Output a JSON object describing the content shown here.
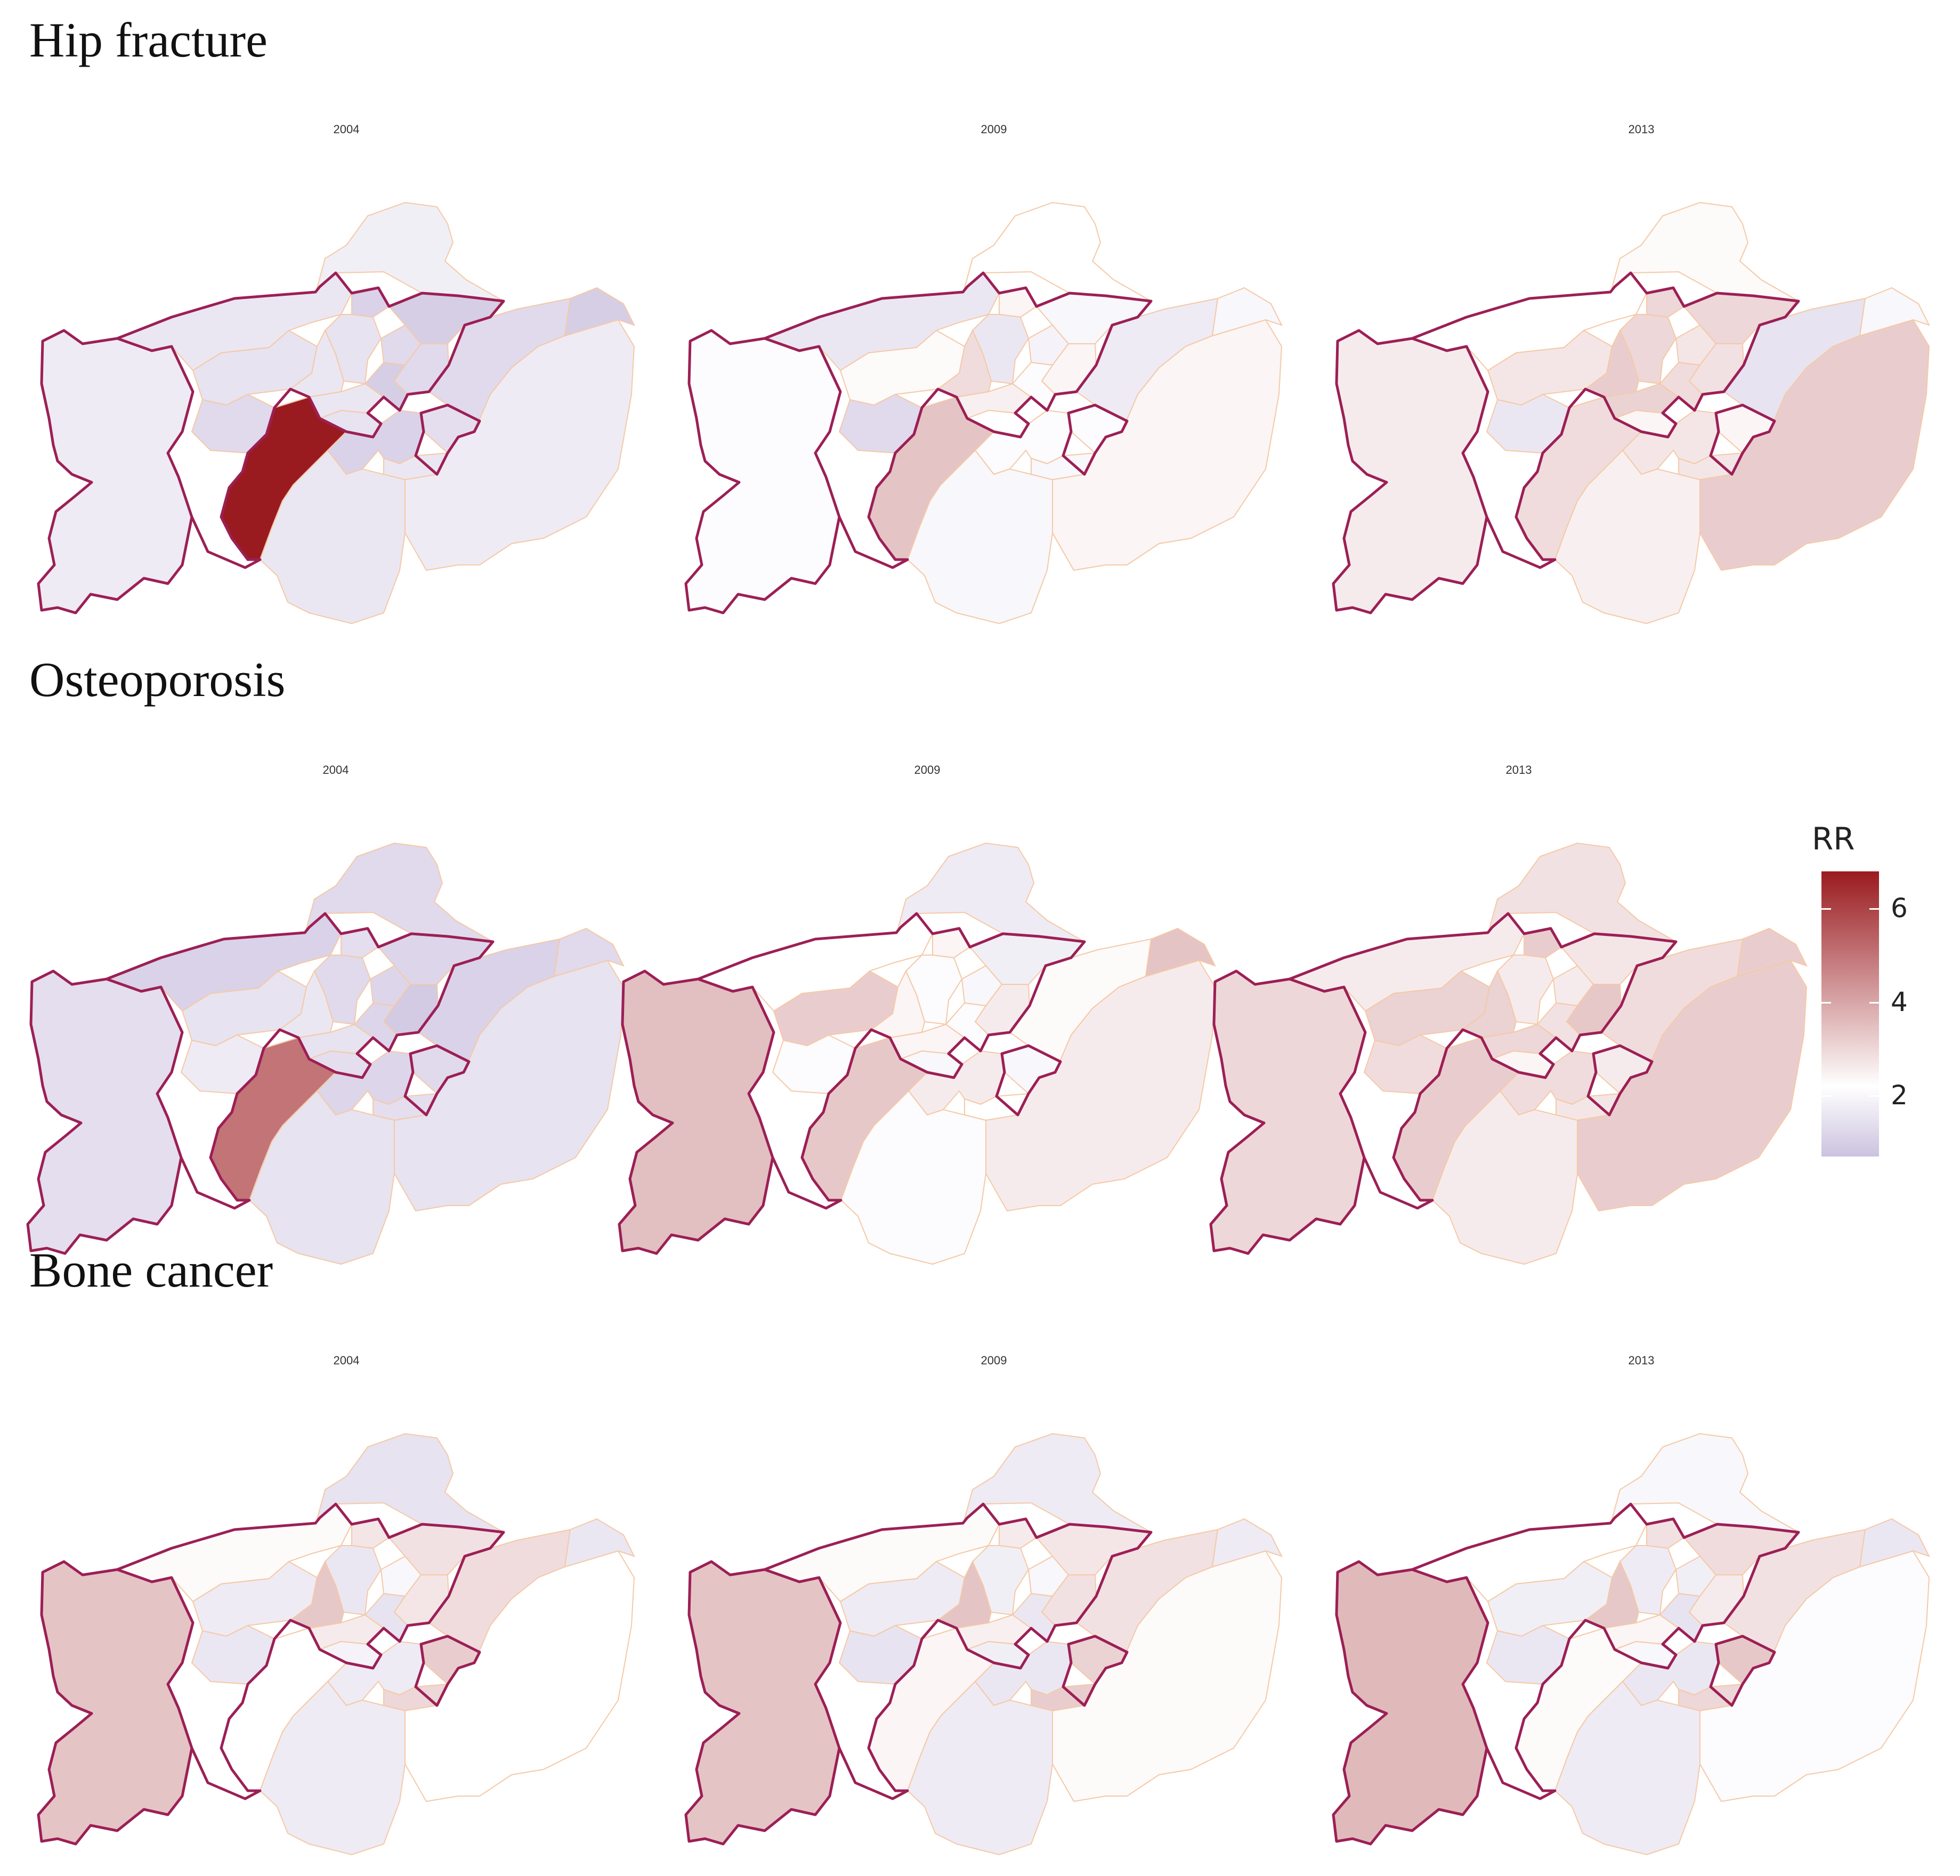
{
  "colors": {
    "low": "#ccc2df",
    "mid": "#ffffff",
    "high": "#9a1b1f",
    "outline": "#9c1f55",
    "inner_border": "#f5c9a6"
  },
  "legend": {
    "title": "RR",
    "min": 0.7,
    "max": 6.8,
    "ticks": [
      "2",
      "4",
      "6"
    ],
    "tick_values": [
      2,
      4,
      6
    ]
  },
  "sections": [
    {
      "title": "Hip fracture",
      "panels": [
        {
          "year": "2004",
          "rr": [
            1.7,
            1.8,
            1.6,
            1.5,
            1.1,
            1.0,
            1.5,
            1.3,
            1.3,
            1.6,
            1.6,
            1.0,
            1.3,
            6.8,
            1.5,
            1.1,
            1.4,
            1.6,
            1.3,
            1.6,
            1.7,
            1.0
          ]
        },
        {
          "year": "2009",
          "rr": [
            2.1,
            2.2,
            1.6,
            2.3,
            2.4,
            2.0,
            1.6,
            1.9,
            2.4,
            2.9,
            2.5,
            2.1,
            1.3,
            3.4,
            2.2,
            2.1,
            2.1,
            2.0,
            1.7,
            2.0,
            2.4,
            2.0
          ]
        },
        {
          "year": "2013",
          "rr": [
            2.6,
            2.3,
            2.2,
            2.7,
            3.0,
            3.0,
            3.0,
            2.7,
            2.8,
            3.2,
            3.1,
            2.9,
            1.6,
            2.9,
            2.4,
            2.7,
            2.4,
            2.7,
            1.5,
            2.5,
            3.2,
            2.0
          ]
        }
      ]
    },
    {
      "title": "Osteoporosis",
      "panels": [
        {
          "year": "2004",
          "rr": [
            1.4,
            1.3,
            1.1,
            1.5,
            1.4,
            1.2,
            1.3,
            1.2,
            0.9,
            1.6,
            1.5,
            1.2,
            1.7,
            5.0,
            1.4,
            1.2,
            1.3,
            1.4,
            1.1,
            1.5,
            1.5,
            1.3
          ]
        },
        {
          "year": "2009",
          "rr": [
            3.5,
            1.7,
            2.2,
            3.2,
            2.4,
            1.8,
            2.1,
            2.0,
            2.6,
            2.4,
            2.4,
            2.1,
            2.1,
            3.3,
            2.0,
            2.6,
            2.0,
            2.2,
            2.3,
            2.1,
            2.6,
            3.4
          ]
        },
        {
          "year": "2013",
          "rr": [
            3.0,
            2.8,
            2.6,
            3.1,
            3.2,
            2.7,
            2.6,
            2.6,
            3.3,
            3.1,
            3.0,
            2.8,
            2.9,
            3.2,
            2.4,
            2.9,
            2.6,
            2.7,
            2.9,
            2.6,
            3.2,
            3.2
          ]
        }
      ]
    },
    {
      "title": "Bone cancer",
      "panels": [
        {
          "year": "2004",
          "rr": [
            3.4,
            1.5,
            2.3,
            1.7,
            2.7,
            2.8,
            1.6,
            2.0,
            2.7,
            3.3,
            2.6,
            1.5,
            1.6,
            2.2,
            1.9,
            1.7,
            3.2,
            3.0,
            2.9,
            1.7,
            2.2,
            1.6
          ]
        },
        {
          "year": "2009",
          "rr": [
            3.4,
            1.7,
            2.3,
            1.7,
            2.6,
            2.7,
            1.8,
            2.0,
            2.8,
            3.4,
            2.5,
            1.6,
            1.5,
            2.4,
            1.8,
            1.6,
            3.1,
            3.2,
            2.8,
            1.7,
            2.3,
            1.7
          ]
        },
        {
          "year": "2013",
          "rr": [
            3.6,
            2.0,
            2.2,
            1.8,
            2.8,
            2.9,
            1.7,
            1.8,
            2.6,
            3.3,
            2.4,
            1.5,
            1.6,
            2.3,
            2.0,
            1.6,
            3.3,
            3.0,
            2.8,
            1.7,
            2.1,
            1.6
          ]
        }
      ]
    }
  ]
}
